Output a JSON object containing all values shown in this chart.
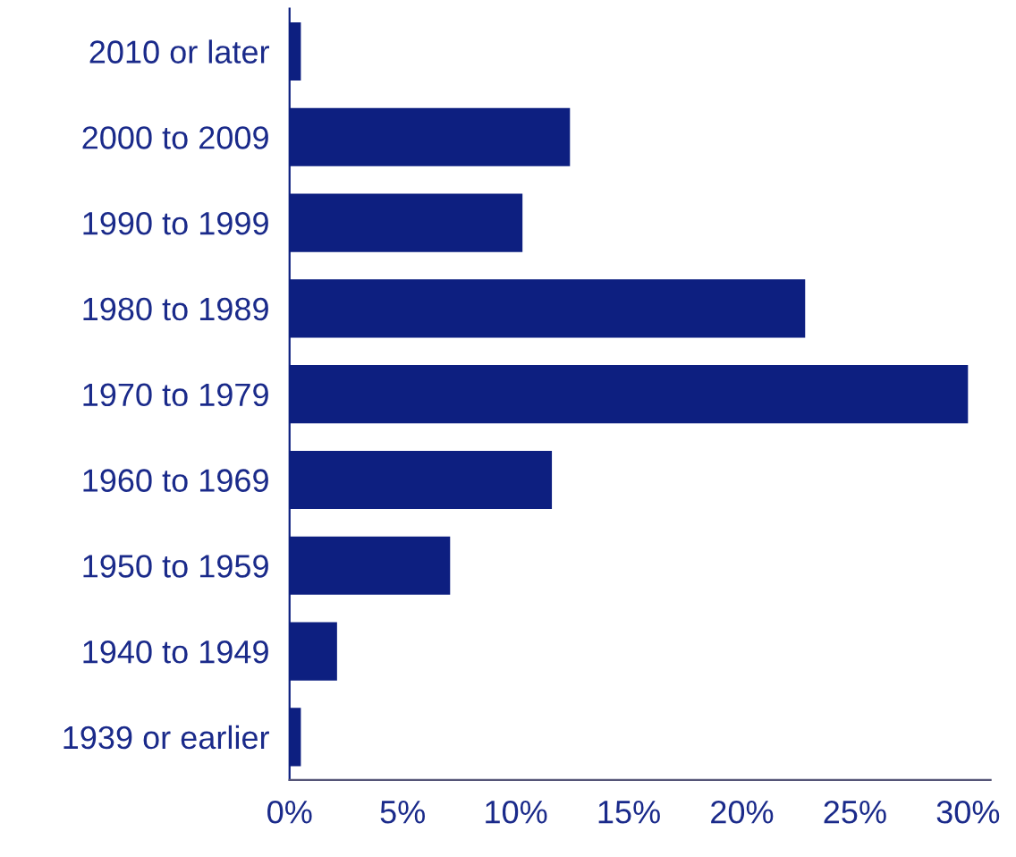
{
  "chart_data": {
    "type": "bar",
    "orientation": "horizontal",
    "categories": [
      "2010 or later",
      "2000 to 2009",
      "1990 to 1999",
      "1980 to 1989",
      "1970 to 1979",
      "1960 to 1969",
      "1950 to 1959",
      "1940 to 1949",
      "1939 or earlier"
    ],
    "values": [
      0.5,
      12.4,
      10.3,
      22.8,
      30.0,
      11.6,
      7.1,
      2.1,
      0.5
    ],
    "color": "#0d1f80",
    "xlim": [
      0,
      31
    ],
    "xticks": [
      {
        "value": 0,
        "label": "0%"
      },
      {
        "value": 5,
        "label": "5%"
      },
      {
        "value": 10,
        "label": "10%"
      },
      {
        "value": 15,
        "label": "15%"
      },
      {
        "value": 20,
        "label": "20%"
      },
      {
        "value": 25,
        "label": "25%"
      },
      {
        "value": 30,
        "label": "30%"
      }
    ],
    "grid": false
  }
}
